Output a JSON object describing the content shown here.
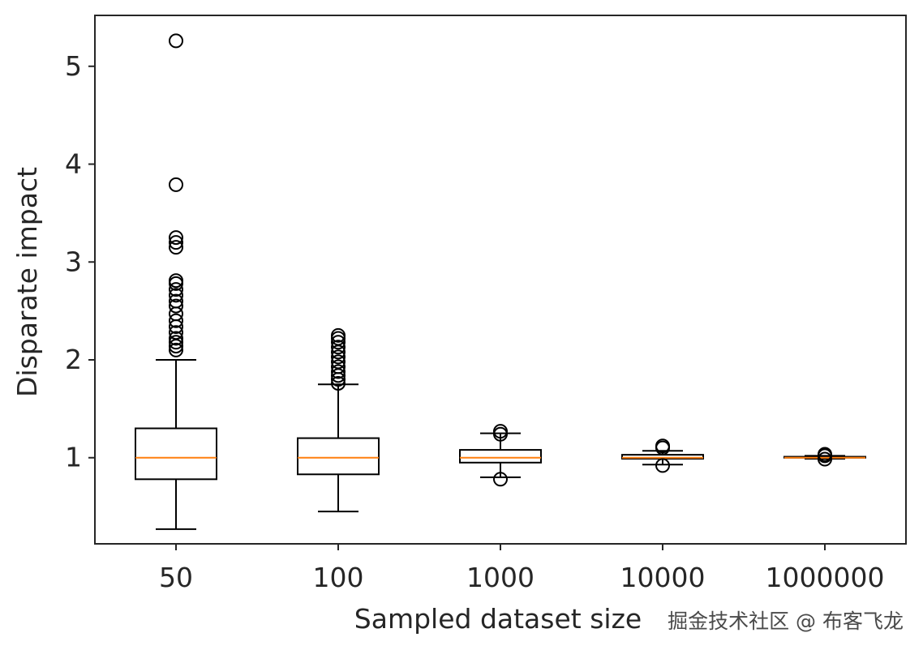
{
  "chart_data": {
    "type": "boxplot",
    "xlabel": "Sampled dataset size",
    "ylabel": "Disparate impact",
    "ylim": [
      0.12,
      5.52
    ],
    "yticks": [
      1,
      2,
      3,
      4,
      5
    ],
    "categories": [
      "50",
      "100",
      "1000",
      "10000",
      "1000000"
    ],
    "boxes": [
      {
        "label": "50",
        "whisker_low": 0.27,
        "q1": 0.78,
        "median": 1.0,
        "q3": 1.3,
        "whisker_high": 2.0,
        "fliers": [
          2.1,
          2.14,
          2.18,
          2.22,
          2.28,
          2.34,
          2.4,
          2.47,
          2.55,
          2.6,
          2.66,
          2.72,
          2.78,
          2.81,
          3.15,
          3.2,
          3.25,
          3.79,
          5.26
        ]
      },
      {
        "label": "100",
        "whisker_low": 0.45,
        "q1": 0.83,
        "median": 1.0,
        "q3": 1.2,
        "whisker_high": 1.75,
        "fliers": [
          1.76,
          1.8,
          1.84,
          1.88,
          1.93,
          1.98,
          2.03,
          2.08,
          2.13,
          2.18,
          2.22,
          2.25
        ]
      },
      {
        "label": "1000",
        "whisker_low": 0.8,
        "q1": 0.95,
        "median": 1.0,
        "q3": 1.08,
        "whisker_high": 1.25,
        "fliers": [
          0.78,
          1.24,
          1.27
        ]
      },
      {
        "label": "10000",
        "whisker_low": 0.93,
        "q1": 0.99,
        "median": 1.0,
        "q3": 1.03,
        "whisker_high": 1.07,
        "fliers": [
          0.92,
          1.1,
          1.12
        ]
      },
      {
        "label": "1000000",
        "whisker_low": 0.99,
        "q1": 1.0,
        "median": 1.0,
        "q3": 1.01,
        "whisker_high": 1.02,
        "fliers": [
          0.985,
          1.02,
          1.035
        ]
      }
    ],
    "colors": {
      "box": "#000000",
      "median": "#ff7f0e",
      "flier": "#000000",
      "axis": "#262626"
    }
  },
  "watermark": "掘金技术社区 @ 布客飞龙"
}
